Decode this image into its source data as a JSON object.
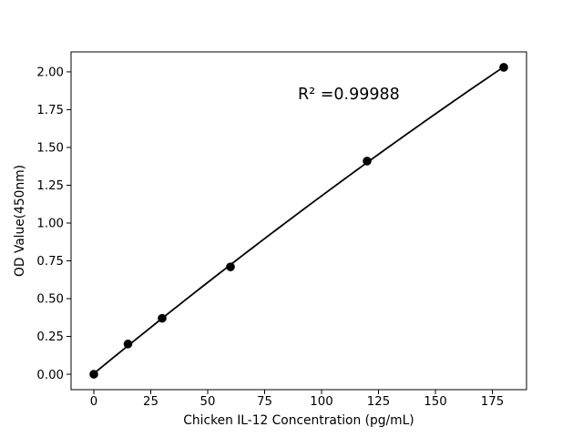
{
  "figure": {
    "background": "#ffffff",
    "foreground": "#000000"
  },
  "chart_data": {
    "type": "scatter",
    "title": "",
    "xlabel": "Chicken IL-12 Concentration (pg/mL)",
    "ylabel": "OD Value(450nm)",
    "x": [
      0,
      15,
      30,
      60,
      120,
      180
    ],
    "y": [
      0.0,
      0.2,
      0.37,
      0.71,
      1.41,
      2.03
    ],
    "xticks": [
      "0",
      "25",
      "50",
      "75",
      "100",
      "125",
      "150",
      "175"
    ],
    "yticks": [
      "0.00",
      "0.25",
      "0.50",
      "0.75",
      "1.00",
      "1.25",
      "1.50",
      "1.75",
      "2.00"
    ],
    "xlim": [
      -10,
      190
    ],
    "ylim": [
      -0.102,
      2.132
    ],
    "grid": false,
    "legend": null,
    "marker": "circle",
    "marker_color": "#000000",
    "line_color": "#000000",
    "fit": "quadratic-least-squares",
    "annotation": {
      "text": "R² =0.99988",
      "x": 105,
      "y": 1.88
    }
  }
}
